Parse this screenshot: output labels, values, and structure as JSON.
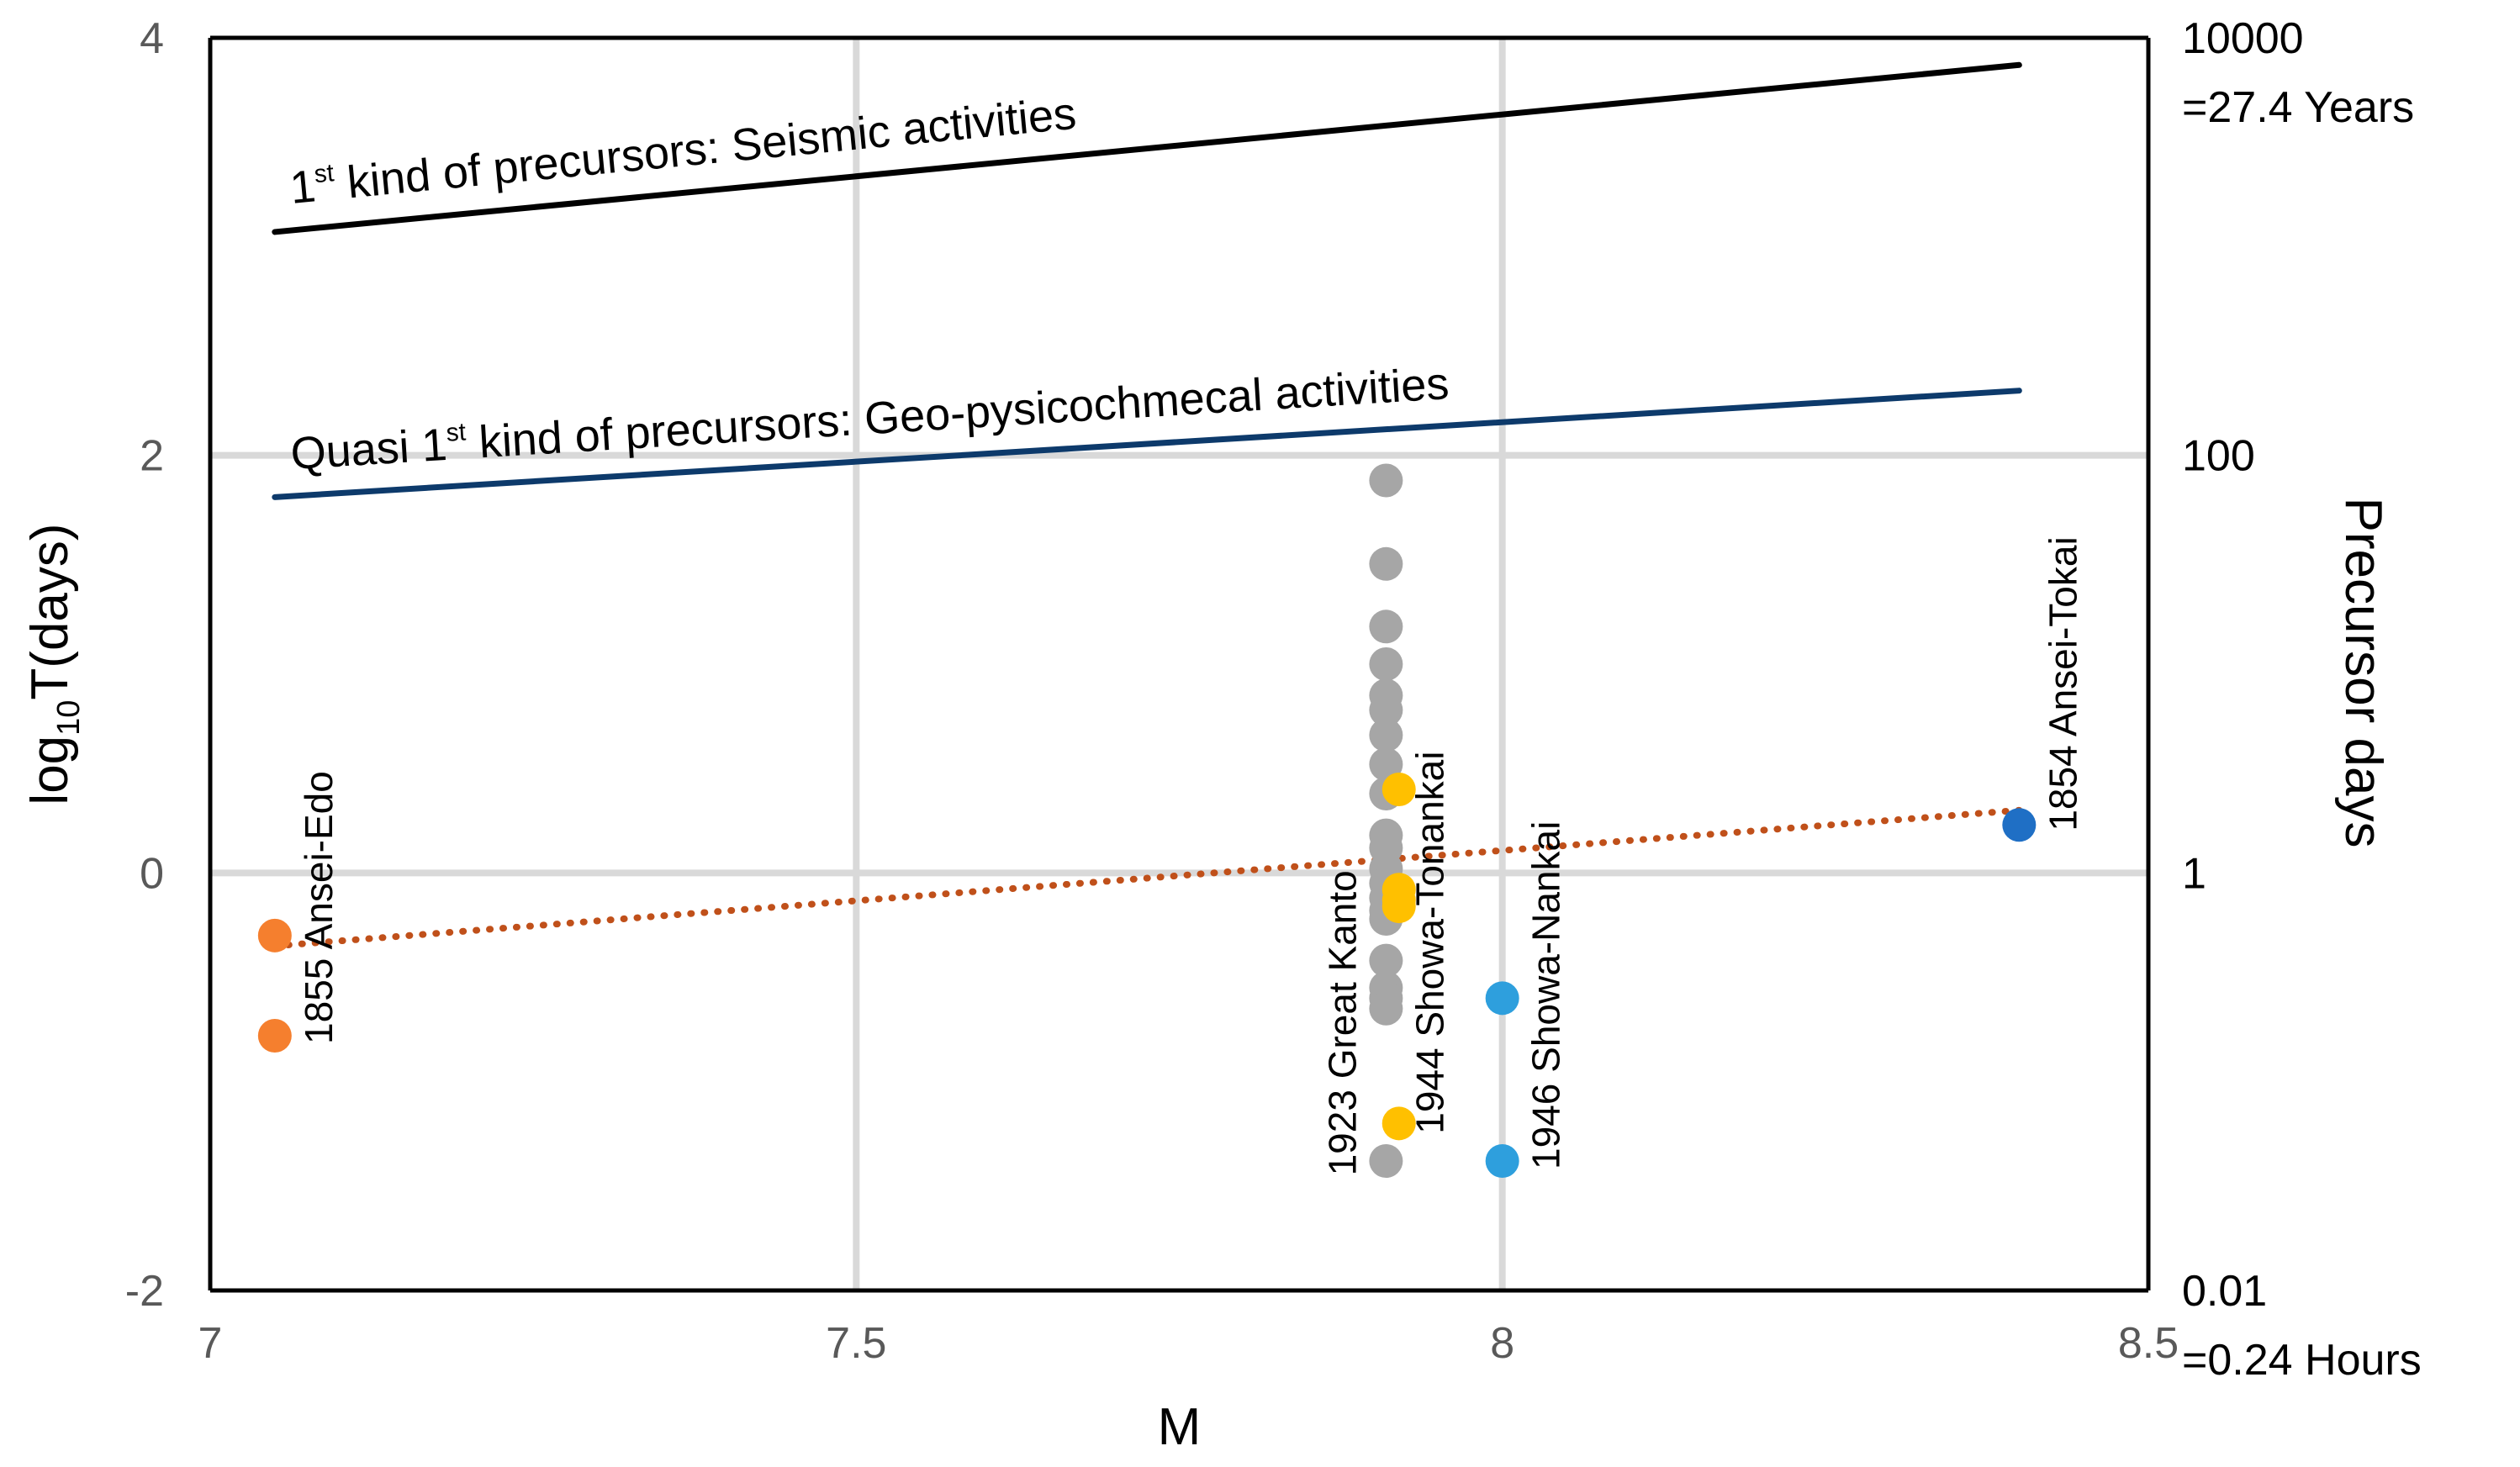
{
  "chart_data": {
    "type": "scatter",
    "xlabel": "M",
    "ylabel_parts": [
      "log",
      "10",
      "T(days)"
    ],
    "y2label": "Precursor days",
    "xlim": [
      7,
      8.5
    ],
    "ylim": [
      -2,
      4
    ],
    "x_ticks": [
      "7",
      "7.5",
      "8",
      "8.5"
    ],
    "y_ticks": [
      "-2",
      "0",
      "2",
      "4"
    ],
    "grid": true,
    "right_axis_ticks": [
      {
        "y": 4,
        "lines": [
          "10000",
          "=27.4 Years"
        ]
      },
      {
        "y": 2,
        "lines": [
          "100"
        ]
      },
      {
        "y": 0,
        "lines": [
          "1"
        ]
      },
      {
        "y": -2,
        "lines": [
          "0.01",
          "=0.24 Hours"
        ]
      }
    ],
    "lines": [
      {
        "name": "seismic",
        "label_parts": [
          "1",
          "st",
          " kind of precursors: Seismic activities"
        ],
        "color": "#000000",
        "x": [
          7.05,
          8.4
        ],
        "y": [
          3.07,
          3.87
        ]
      },
      {
        "name": "geo",
        "label_parts": [
          "Quasi 1",
          "st",
          " kind of precursors: Geo-pysicochmecal activities"
        ],
        "color": "#0d3a6b",
        "x": [
          7.05,
          8.4
        ],
        "y": [
          1.8,
          2.31
        ]
      },
      {
        "name": "trend",
        "label_parts": [],
        "color": "#c0501a",
        "dotted": true,
        "x": [
          7.05,
          8.4
        ],
        "y": [
          -0.35,
          0.3
        ]
      }
    ],
    "series": [
      {
        "name": "1855 Ansei-Edo",
        "color": "#f57f2e",
        "label_x": 7.05,
        "label_y": -0.82,
        "label_dx": 1,
        "points": [
          [
            7.05,
            -0.3
          ],
          [
            7.05,
            -0.78
          ]
        ]
      },
      {
        "name": "1923 Great Kanto",
        "color": "#a6a6a6",
        "label_x": 7.91,
        "label_y": -1.45,
        "label_dx": -1,
        "points": [
          [
            7.91,
            1.88
          ],
          [
            7.91,
            1.48
          ],
          [
            7.91,
            1.18
          ],
          [
            7.91,
            1.0
          ],
          [
            7.91,
            0.85
          ],
          [
            7.91,
            0.78
          ],
          [
            7.91,
            0.66
          ],
          [
            7.91,
            0.52
          ],
          [
            7.91,
            0.38
          ],
          [
            7.91,
            0.18
          ],
          [
            7.91,
            0.12
          ],
          [
            7.91,
            0.02
          ],
          [
            7.91,
            -0.05
          ],
          [
            7.91,
            -0.12
          ],
          [
            7.91,
            -0.18
          ],
          [
            7.91,
            -0.22
          ],
          [
            7.91,
            -0.42
          ],
          [
            7.91,
            -0.55
          ],
          [
            7.91,
            -0.6
          ],
          [
            7.91,
            -0.65
          ],
          [
            7.91,
            -1.38
          ]
        ]
      },
      {
        "name": "1944 Showa-Tonankai",
        "color": "#ffc000",
        "label_x": 7.91,
        "label_y": -1.25,
        "label_dx": 1,
        "points": [
          [
            7.92,
            0.4
          ],
          [
            7.92,
            -0.08
          ],
          [
            7.92,
            -0.13
          ],
          [
            7.92,
            -0.16
          ],
          [
            7.92,
            -1.2
          ]
        ]
      },
      {
        "name": "1946 Showa-Nankai",
        "color": "#2e9fdd",
        "label_x": 8.0,
        "label_y": -1.42,
        "label_dx": 1,
        "points": [
          [
            8.0,
            -0.6
          ],
          [
            8.0,
            -1.38
          ]
        ]
      },
      {
        "name": "1854 Ansei-Tokai",
        "color": "#1f6fc5",
        "label_x": 8.4,
        "label_y": 0.2,
        "label_dx": 1,
        "points": [
          [
            8.4,
            0.23
          ]
        ]
      }
    ]
  }
}
